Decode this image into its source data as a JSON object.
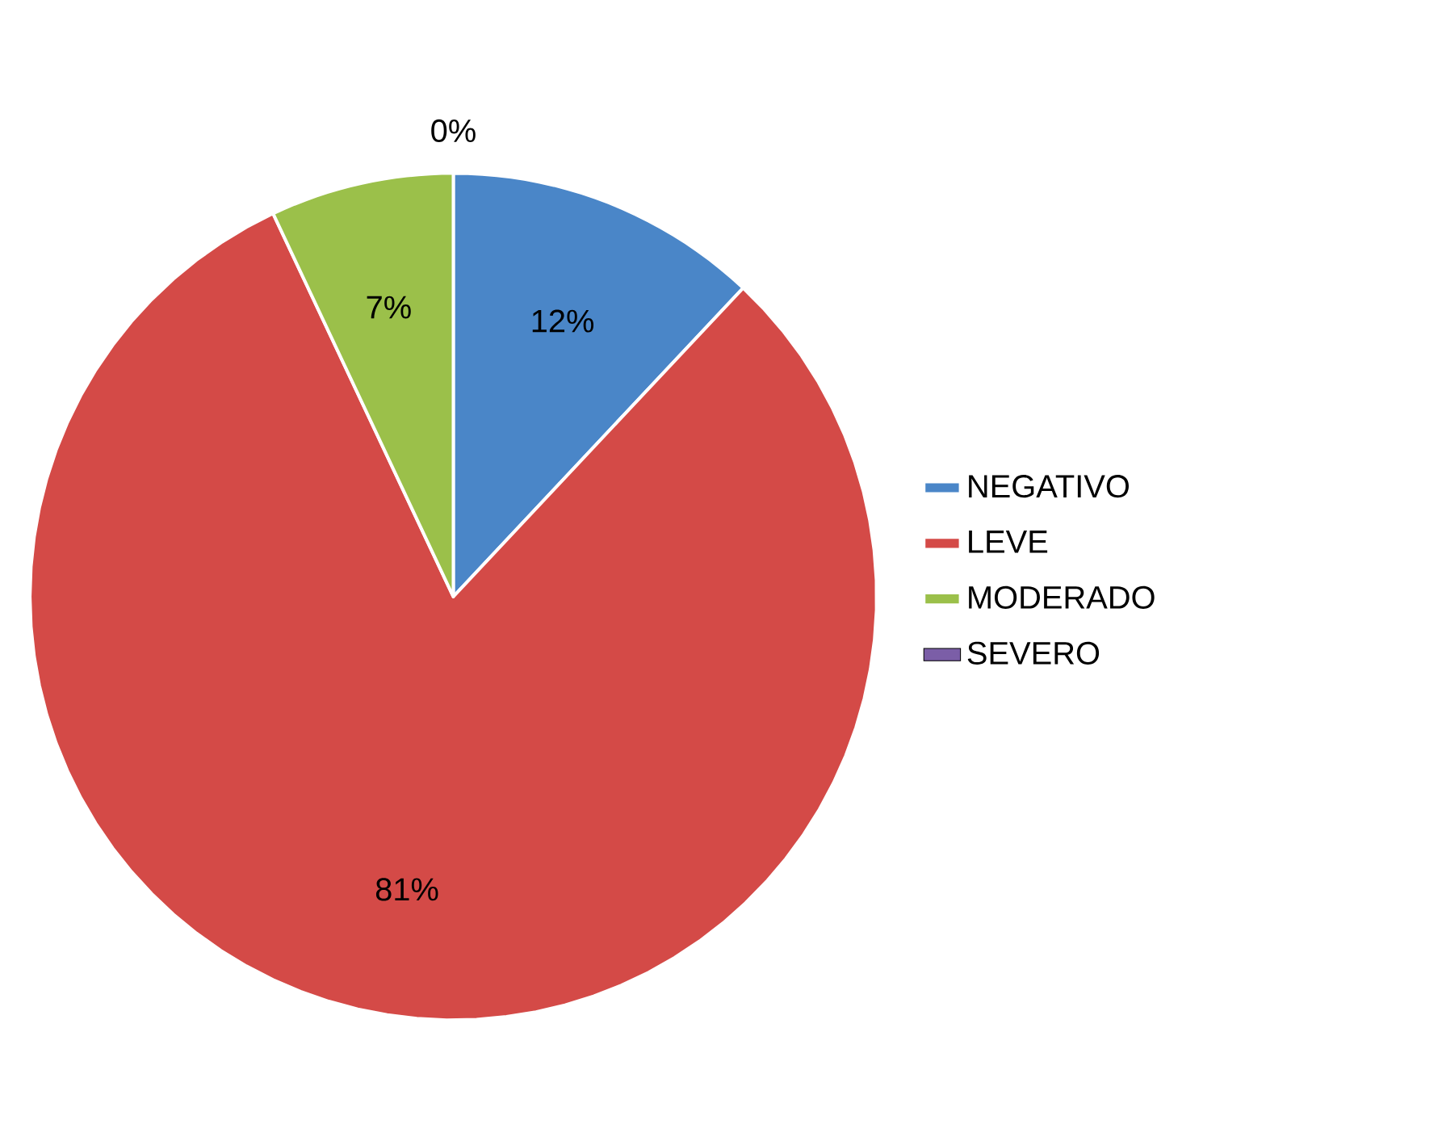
{
  "chart_data": {
    "type": "pie",
    "categories": [
      "NEGATIVO",
      "LEVE",
      "MODERADO",
      "SEVERO"
    ],
    "values": [
      12,
      81,
      7,
      0
    ],
    "colors": [
      "#4a86c8",
      "#d44a47",
      "#9bc04a",
      "#7b5ea7"
    ],
    "value_labels": [
      "12%",
      "81%",
      "7%",
      "0%"
    ],
    "legend": "right"
  }
}
